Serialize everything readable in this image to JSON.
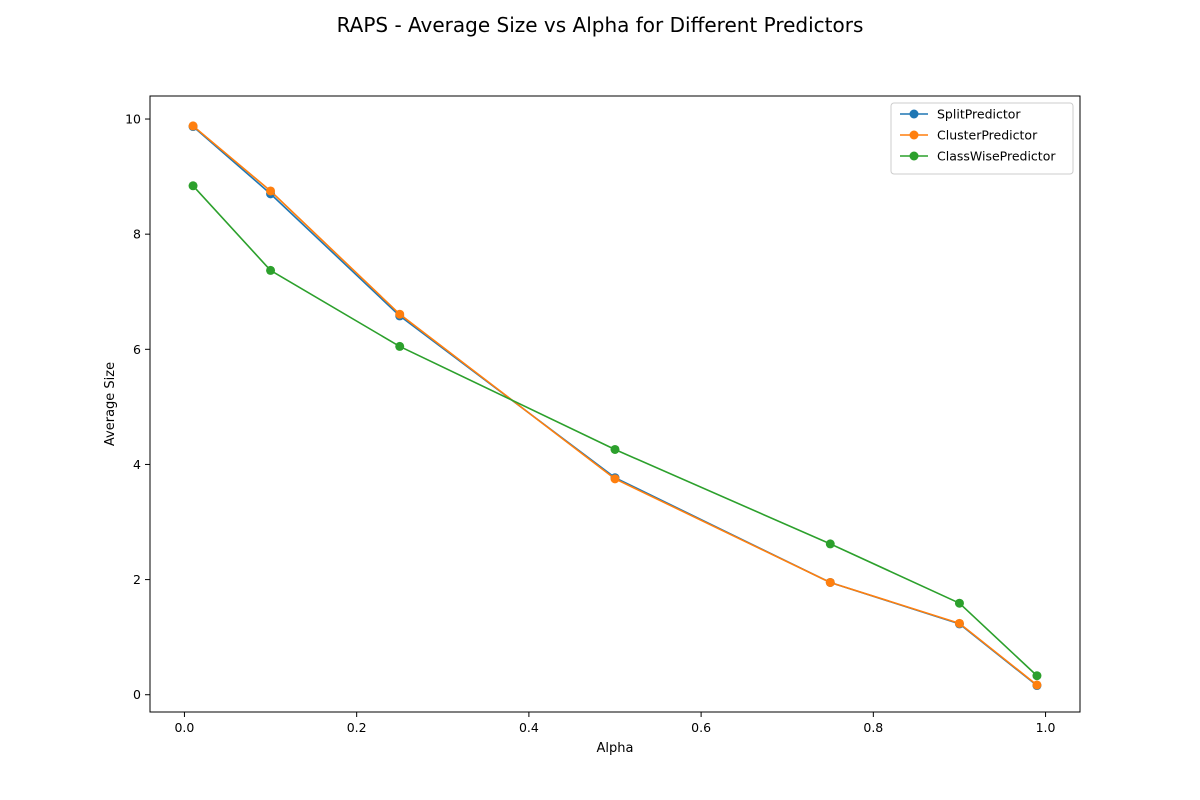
{
  "chart_data": {
    "type": "line",
    "title": "RAPS - Average Size vs Alpha for Different Predictors",
    "xlabel": "Alpha",
    "ylabel": "Average Size",
    "xlim": [
      -0.04,
      1.04
    ],
    "ylim": [
      -0.3,
      10.4
    ],
    "xticks": [
      0.0,
      0.2,
      0.4,
      0.6,
      0.8,
      1.0
    ],
    "xtick_labels": [
      "0.0",
      "0.2",
      "0.4",
      "0.6",
      "0.8",
      "1.0"
    ],
    "yticks": [
      0,
      2,
      4,
      6,
      8,
      10
    ],
    "ytick_labels": [
      "0",
      "2",
      "4",
      "6",
      "8",
      "10"
    ],
    "grid": false,
    "legend_position": "top-right",
    "x": [
      0.01,
      0.1,
      0.25,
      0.5,
      0.75,
      0.9,
      0.99
    ],
    "series": [
      {
        "name": "SplitPredictor",
        "color": "#1f77b4",
        "marker": "circle",
        "values": [
          9.87,
          8.7,
          6.58,
          3.77,
          1.95,
          1.23,
          0.16
        ]
      },
      {
        "name": "ClusterPredictor",
        "color": "#ff7f0e",
        "marker": "circle",
        "values": [
          9.88,
          8.75,
          6.61,
          3.75,
          1.95,
          1.24,
          0.17
        ]
      },
      {
        "name": "ClassWisePredictor",
        "color": "#2ca02c",
        "marker": "circle",
        "values": [
          8.84,
          7.37,
          6.05,
          4.26,
          2.62,
          1.59,
          0.33
        ]
      }
    ]
  }
}
